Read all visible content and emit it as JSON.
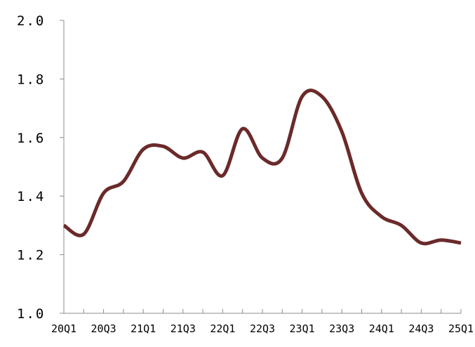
{
  "chart_data": {
    "type": "line",
    "title": "",
    "xlabel": "",
    "ylabel": "",
    "ylim": [
      1.0,
      2.0
    ],
    "y_ticks": [
      "1.0",
      "1.2",
      "1.4",
      "1.6",
      "1.8",
      "2.0"
    ],
    "x": [
      "20Q1",
      "20Q2",
      "20Q3",
      "20Q4",
      "21Q1",
      "21Q2",
      "21Q3",
      "21Q4",
      "22Q1",
      "22Q2",
      "22Q3",
      "22Q4",
      "23Q1",
      "23Q2",
      "23Q3",
      "23Q4",
      "24Q1",
      "24Q2",
      "24Q3",
      "24Q4",
      "25Q1"
    ],
    "x_tick_labels": [
      "20Q1",
      "20Q3",
      "21Q1",
      "21Q3",
      "22Q1",
      "22Q3",
      "23Q1",
      "23Q3",
      "24Q1",
      "24Q3",
      "25Q1"
    ],
    "series": [
      {
        "color": "#6b2a2a",
        "values": [
          1.3,
          1.27,
          1.41,
          1.45,
          1.56,
          1.57,
          1.53,
          1.55,
          1.47,
          1.63,
          1.53,
          1.53,
          1.74,
          1.74,
          1.62,
          1.41,
          1.33,
          1.3,
          1.24,
          1.25,
          1.24
        ]
      }
    ],
    "grid": false,
    "legend": "none"
  }
}
